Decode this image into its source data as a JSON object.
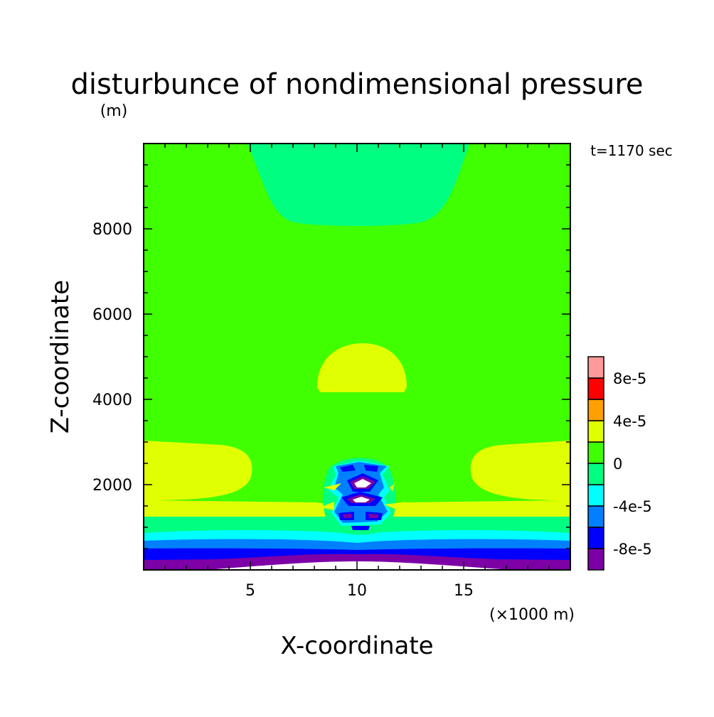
{
  "chart_data": {
    "type": "heatmap",
    "title": "disturbunce of nondimensional pressure",
    "time_label": "t=1170 sec",
    "xlabel": "X-coordinate",
    "x_unit_label": "(×1000 m)",
    "ylabel": "Z-coordinate",
    "y_unit_label": "(m)",
    "xlim": [
      0,
      20
    ],
    "ylim": [
      0,
      10000
    ],
    "xticks": [
      5,
      10,
      15
    ],
    "yticks": [
      2000,
      4000,
      6000,
      8000
    ],
    "grid": false,
    "colorbar": {
      "levels": [
        -0.0001,
        -8e-05,
        -6e-05,
        -4e-05,
        -2e-05,
        0,
        2e-05,
        4e-05,
        6e-05,
        8e-05,
        0.0001
      ],
      "colors": [
        "#7c00a6",
        "#0000ff",
        "#0080ff",
        "#00ffff",
        "#00ff80",
        "#40ff00",
        "#e0ff00",
        "#ffa000",
        "#ff0000",
        "#ff9a9a"
      ],
      "tick_labels": [
        "-8e-5",
        "-4e-5",
        "0",
        "4e-5",
        "8e-5"
      ]
    }
  }
}
